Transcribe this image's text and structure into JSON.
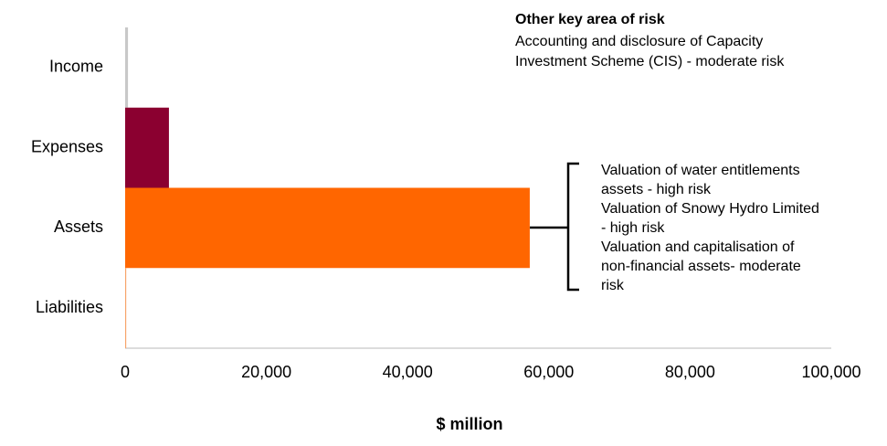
{
  "chart_data": {
    "type": "hbar",
    "categories": [
      "Income",
      "Expenses",
      "Assets",
      "Liabilities"
    ],
    "values": [
      400,
      6200,
      57300,
      150
    ],
    "colors": [
      "#c8c8c8",
      "#8b0030",
      "#ff6600",
      "#f7a46a"
    ],
    "xlabel": "$ million",
    "xlim": [
      0,
      100000
    ],
    "xticks": [
      0,
      {
        "value": 20000,
        "label": "20,000"
      },
      {
        "value": 40000,
        "label": "40,000"
      },
      {
        "value": 60000,
        "label": "60,000"
      },
      {
        "value": 80000,
        "label": "80,000"
      },
      {
        "value": 100000,
        "label": "100,000"
      }
    ],
    "grid": false,
    "annotations": {
      "other_title": "Other key area of risk",
      "other_lines": [
        "Accounting and disclosure of Capacity",
        "Investment Scheme (CIS) - moderate risk"
      ],
      "asset_lines": [
        "Valuation of water entitlements",
        "assets - high risk",
        "Valuation of Snowy Hydro Limited",
        "- high risk",
        "Valuation and capitalisation of",
        "non-financial assets- moderate",
        "risk"
      ]
    }
  }
}
